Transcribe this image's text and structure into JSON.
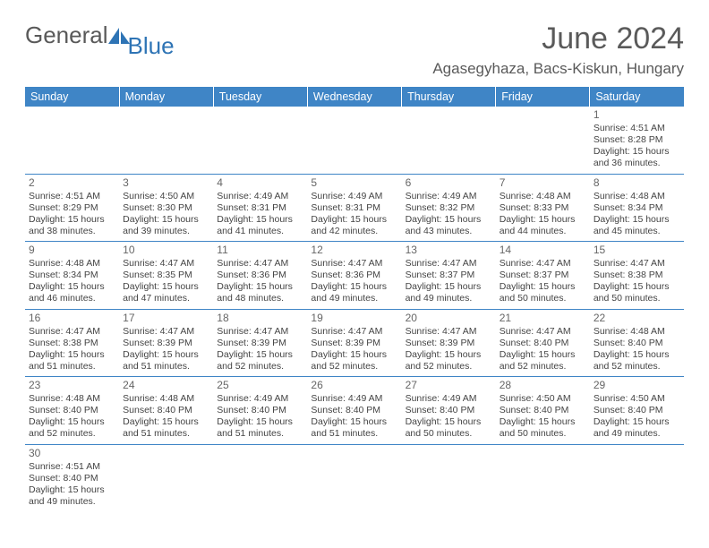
{
  "brand": {
    "part1": "General",
    "part2": "Blue",
    "text_color": "#595959",
    "accent_color": "#2e74b5"
  },
  "title": "June 2024",
  "location": "Agasegyhaza, Bacs-Kiskun, Hungary",
  "header_bg": "#3f85c6",
  "header_text": "#ffffff",
  "cell_border": "#3f85c6",
  "day_names": [
    "Sunday",
    "Monday",
    "Tuesday",
    "Wednesday",
    "Thursday",
    "Friday",
    "Saturday"
  ],
  "weeks": [
    [
      null,
      null,
      null,
      null,
      null,
      null,
      {
        "n": "1",
        "sunrise": "4:51 AM",
        "sunset": "8:28 PM",
        "dl": "15 hours and 36 minutes."
      }
    ],
    [
      {
        "n": "2",
        "sunrise": "4:51 AM",
        "sunset": "8:29 PM",
        "dl": "15 hours and 38 minutes."
      },
      {
        "n": "3",
        "sunrise": "4:50 AM",
        "sunset": "8:30 PM",
        "dl": "15 hours and 39 minutes."
      },
      {
        "n": "4",
        "sunrise": "4:49 AM",
        "sunset": "8:31 PM",
        "dl": "15 hours and 41 minutes."
      },
      {
        "n": "5",
        "sunrise": "4:49 AM",
        "sunset": "8:31 PM",
        "dl": "15 hours and 42 minutes."
      },
      {
        "n": "6",
        "sunrise": "4:49 AM",
        "sunset": "8:32 PM",
        "dl": "15 hours and 43 minutes."
      },
      {
        "n": "7",
        "sunrise": "4:48 AM",
        "sunset": "8:33 PM",
        "dl": "15 hours and 44 minutes."
      },
      {
        "n": "8",
        "sunrise": "4:48 AM",
        "sunset": "8:34 PM",
        "dl": "15 hours and 45 minutes."
      }
    ],
    [
      {
        "n": "9",
        "sunrise": "4:48 AM",
        "sunset": "8:34 PM",
        "dl": "15 hours and 46 minutes."
      },
      {
        "n": "10",
        "sunrise": "4:47 AM",
        "sunset": "8:35 PM",
        "dl": "15 hours and 47 minutes."
      },
      {
        "n": "11",
        "sunrise": "4:47 AM",
        "sunset": "8:36 PM",
        "dl": "15 hours and 48 minutes."
      },
      {
        "n": "12",
        "sunrise": "4:47 AM",
        "sunset": "8:36 PM",
        "dl": "15 hours and 49 minutes."
      },
      {
        "n": "13",
        "sunrise": "4:47 AM",
        "sunset": "8:37 PM",
        "dl": "15 hours and 49 minutes."
      },
      {
        "n": "14",
        "sunrise": "4:47 AM",
        "sunset": "8:37 PM",
        "dl": "15 hours and 50 minutes."
      },
      {
        "n": "15",
        "sunrise": "4:47 AM",
        "sunset": "8:38 PM",
        "dl": "15 hours and 50 minutes."
      }
    ],
    [
      {
        "n": "16",
        "sunrise": "4:47 AM",
        "sunset": "8:38 PM",
        "dl": "15 hours and 51 minutes."
      },
      {
        "n": "17",
        "sunrise": "4:47 AM",
        "sunset": "8:39 PM",
        "dl": "15 hours and 51 minutes."
      },
      {
        "n": "18",
        "sunrise": "4:47 AM",
        "sunset": "8:39 PM",
        "dl": "15 hours and 52 minutes."
      },
      {
        "n": "19",
        "sunrise": "4:47 AM",
        "sunset": "8:39 PM",
        "dl": "15 hours and 52 minutes."
      },
      {
        "n": "20",
        "sunrise": "4:47 AM",
        "sunset": "8:39 PM",
        "dl": "15 hours and 52 minutes."
      },
      {
        "n": "21",
        "sunrise": "4:47 AM",
        "sunset": "8:40 PM",
        "dl": "15 hours and 52 minutes."
      },
      {
        "n": "22",
        "sunrise": "4:48 AM",
        "sunset": "8:40 PM",
        "dl": "15 hours and 52 minutes."
      }
    ],
    [
      {
        "n": "23",
        "sunrise": "4:48 AM",
        "sunset": "8:40 PM",
        "dl": "15 hours and 52 minutes."
      },
      {
        "n": "24",
        "sunrise": "4:48 AM",
        "sunset": "8:40 PM",
        "dl": "15 hours and 51 minutes."
      },
      {
        "n": "25",
        "sunrise": "4:49 AM",
        "sunset": "8:40 PM",
        "dl": "15 hours and 51 minutes."
      },
      {
        "n": "26",
        "sunrise": "4:49 AM",
        "sunset": "8:40 PM",
        "dl": "15 hours and 51 minutes."
      },
      {
        "n": "27",
        "sunrise": "4:49 AM",
        "sunset": "8:40 PM",
        "dl": "15 hours and 50 minutes."
      },
      {
        "n": "28",
        "sunrise": "4:50 AM",
        "sunset": "8:40 PM",
        "dl": "15 hours and 50 minutes."
      },
      {
        "n": "29",
        "sunrise": "4:50 AM",
        "sunset": "8:40 PM",
        "dl": "15 hours and 49 minutes."
      }
    ],
    [
      {
        "n": "30",
        "sunrise": "4:51 AM",
        "sunset": "8:40 PM",
        "dl": "15 hours and 49 minutes."
      },
      null,
      null,
      null,
      null,
      null,
      null
    ]
  ],
  "labels": {
    "sunrise": "Sunrise:",
    "sunset": "Sunset:",
    "daylight": "Daylight:"
  }
}
